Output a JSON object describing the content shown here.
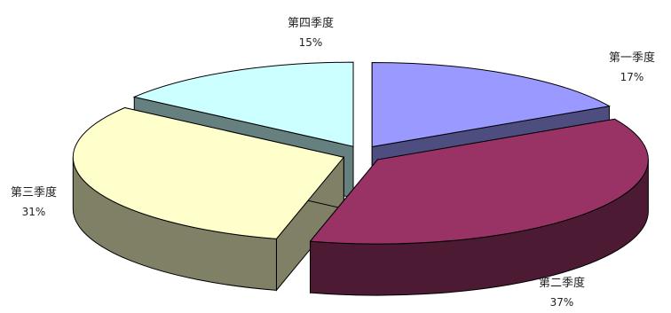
{
  "chart_data": {
    "type": "pie",
    "style": "3d-exploded",
    "title": "",
    "slices": [
      {
        "label": "第一季度",
        "value": 17,
        "display": "17%",
        "color_top": "#9999ff",
        "color_side": "#4d4d80"
      },
      {
        "label": "第二季度",
        "value": 37,
        "display": "37%",
        "color_top": "#993366",
        "color_side": "#4d1a33"
      },
      {
        "label": "第三季度",
        "value": 31,
        "display": "31%",
        "color_top": "#ffffcc",
        "color_side": "#808066"
      },
      {
        "label": "第四季度",
        "value": 15,
        "display": "15%",
        "color_top": "#ccffff",
        "color_side": "#668080"
      }
    ],
    "legend": false,
    "grid": false
  }
}
